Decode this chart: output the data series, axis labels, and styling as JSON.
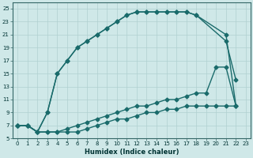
{
  "xlabel": "Humidex (Indice chaleur)",
  "bg_color": "#cfe8e8",
  "line_color": "#1a6b6b",
  "grid_color": "#b0d0d0",
  "xlim": [
    -0.5,
    23.5
  ],
  "ylim": [
    5,
    26
  ],
  "xticks": [
    0,
    1,
    2,
    3,
    4,
    5,
    6,
    7,
    8,
    9,
    10,
    11,
    12,
    13,
    14,
    15,
    16,
    17,
    18,
    19,
    20,
    21,
    22,
    23
  ],
  "yticks": [
    5,
    7,
    9,
    11,
    13,
    15,
    17,
    19,
    21,
    23,
    25
  ],
  "line1_x": [
    0,
    1,
    2,
    3,
    4,
    5,
    6,
    7,
    8,
    9,
    10,
    11,
    12,
    13,
    14,
    15,
    16,
    17,
    18,
    19,
    20,
    21,
    22
  ],
  "line1_y": [
    7,
    7,
    6,
    6,
    6,
    6,
    6,
    6.5,
    7,
    7.5,
    8,
    8,
    8.5,
    9,
    9,
    9.5,
    9.5,
    10,
    10,
    10,
    10,
    10,
    10
  ],
  "line2_x": [
    0,
    1,
    2,
    3,
    4,
    5,
    6,
    7,
    8,
    9,
    10,
    11,
    12,
    13,
    14,
    15,
    16,
    17,
    18,
    19,
    20,
    21,
    22
  ],
  "line2_y": [
    7,
    7,
    6,
    6,
    6,
    6.5,
    7,
    7.5,
    8,
    8.5,
    9,
    9.5,
    10,
    10,
    10.5,
    11,
    11,
    11.5,
    12,
    12,
    16,
    16,
    10
  ],
  "line3_x": [
    0,
    1,
    2,
    3,
    4,
    5,
    6,
    7,
    8,
    9,
    10,
    11,
    12,
    13,
    14,
    15,
    16,
    17,
    18,
    21,
    22
  ],
  "line3_y": [
    7,
    7,
    6,
    9,
    15,
    17,
    19,
    20,
    21,
    22,
    23,
    24,
    24.5,
    24.5,
    24.5,
    24.5,
    24.5,
    24.5,
    24,
    20,
    14
  ],
  "line4_x": [
    0,
    1,
    2,
    3,
    4,
    5,
    6,
    7,
    8,
    9,
    10,
    11,
    12,
    13,
    14,
    15,
    16,
    17,
    18,
    21,
    22
  ],
  "line4_y": [
    7,
    7,
    6,
    9,
    15,
    17,
    19,
    20,
    21,
    22,
    23,
    24,
    24.5,
    24.5,
    24.5,
    24.5,
    24.5,
    24.5,
    24,
    21,
    10
  ],
  "marker": "D",
  "markersize": 2.5,
  "linewidth": 1.0
}
